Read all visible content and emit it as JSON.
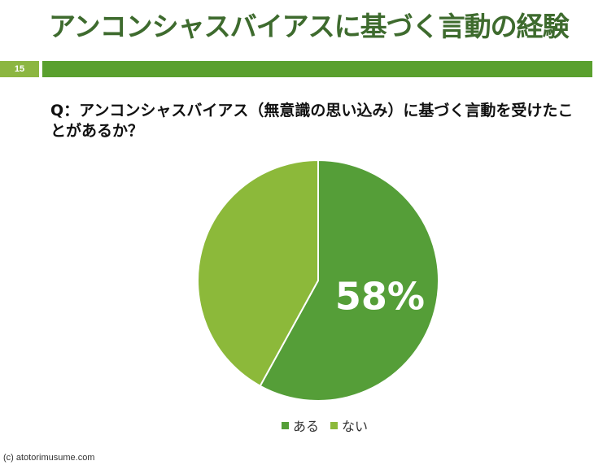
{
  "slide": {
    "title": "アンコンシャスバイアスに基づく言動の経験",
    "number": "15",
    "question": "Q：アンコンシャスバイアス（無意識の思い込み）に基づく言動を受けたことがあるか？",
    "footer": "(c) atotorimusume.com"
  },
  "colors": {
    "title": "#3e6b2e",
    "accent_bar": "#5aa02e",
    "number_box": "#8cb641"
  },
  "chart_data": {
    "type": "pie",
    "title": "",
    "categories": [
      "ある",
      "ない"
    ],
    "values": [
      58,
      42
    ],
    "colors": [
      "#559e38",
      "#8cb93a"
    ],
    "data_labels": [
      "58%",
      ""
    ],
    "legend_position": "bottom",
    "start_angle": "top",
    "direction": "clockwise"
  }
}
